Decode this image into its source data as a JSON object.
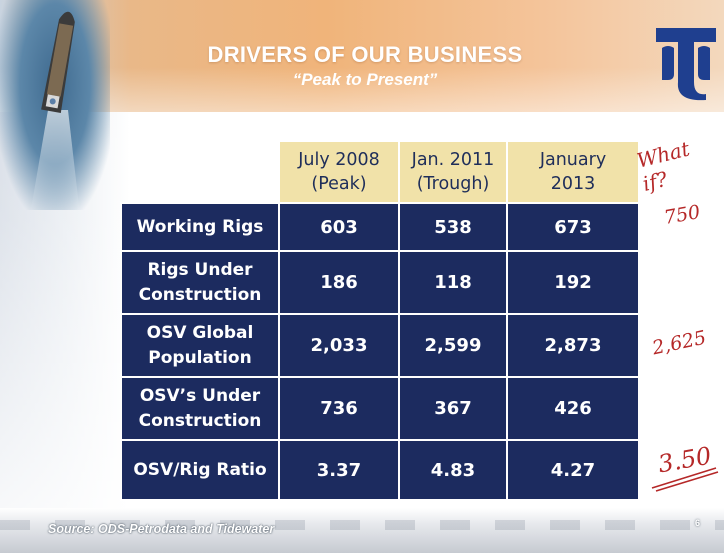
{
  "slide": {
    "title": "DRIVERS OF OUR BUSINESS",
    "subtitle": "“Peak to Present”",
    "source": "Source: ODS-Petrodata and Tidewater",
    "page_number": "6"
  },
  "table": {
    "headers": [
      {
        "line1": "July 2008",
        "line2": "(Peak)"
      },
      {
        "line1": "Jan. 2011",
        "line2": "(Trough)"
      },
      {
        "line1": "January",
        "line2": "2013"
      }
    ],
    "rows": [
      {
        "label_line1": "Working Rigs",
        "label_line2": "",
        "values": [
          "603",
          "538",
          "673"
        ]
      },
      {
        "label_line1": "Rigs Under",
        "label_line2": "Construction",
        "values": [
          "186",
          "118",
          "192"
        ]
      },
      {
        "label_line1": "OSV Global",
        "label_line2": "Population",
        "values": [
          "2,033",
          "2,599",
          "2,873"
        ]
      },
      {
        "label_line1": "OSV’s Under",
        "label_line2": "Construction",
        "values": [
          "736",
          "367",
          "426"
        ]
      },
      {
        "label_line1": "OSV/Rig Ratio",
        "label_line2": "",
        "values": [
          "3.37",
          "4.83",
          "4.27"
        ]
      }
    ]
  },
  "annotations": {
    "what_if": "What if?",
    "rigs": "750",
    "population": "2,625",
    "ratio": "3.50"
  },
  "colors": {
    "table_header": "#f1e2a9",
    "table_body": "#1c2b5f",
    "annotation_red": "#b52828",
    "header_orange": "#f0b47a"
  },
  "icons": {
    "logo": "tidewater-logo",
    "ship": "ship-image"
  }
}
